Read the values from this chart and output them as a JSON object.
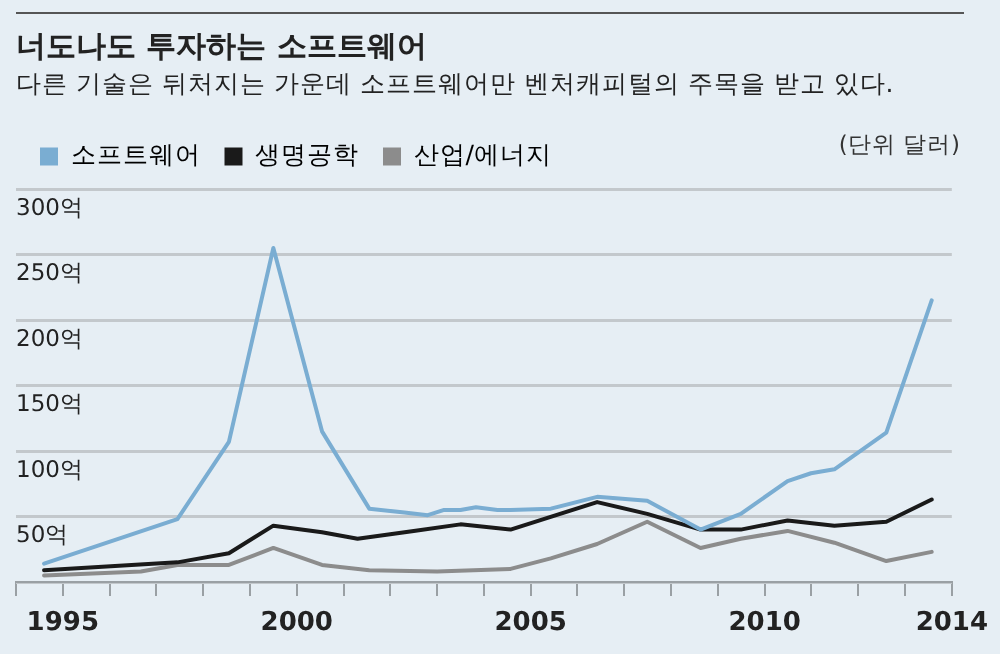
{
  "chart_data": {
    "type": "line",
    "title": "너도나도 투자하는 소프트웨어",
    "subtitle": "다른 기술은 뒤처지는 가운데 소프트웨어만 벤처캐피털의 주목을 받고 있다.",
    "annotations": [
      "(단위 달러)"
    ],
    "series": [
      {
        "name": "소프트웨어",
        "color": "#7aadd2",
        "x": [
          1994.6,
          1997.45,
          1998.55,
          1999.5,
          2000.54,
          2001.55,
          2002.3,
          2002.8,
          2003.15,
          2003.5,
          2003.83,
          2004.29,
          2004.57,
          2005.43,
          2006.42,
          2007.49,
          2008.63,
          2009.49,
          2010.49,
          2010.99,
          2011.49,
          2012.6,
          2013.57
        ],
        "values": [
          14,
          48,
          107,
          255,
          115,
          56,
          53,
          51,
          55,
          55,
          57,
          55,
          55,
          56,
          65,
          62,
          40,
          52,
          77,
          83,
          86,
          114,
          215
        ]
      },
      {
        "name": "생명공학",
        "color": "#1a1a1a",
        "x": [
          1994.6,
          1997.45,
          1998.55,
          1999.5,
          2000.54,
          2001.3,
          2002.5,
          2003.5,
          2004.57,
          2006.42,
          2007.49,
          2008.63,
          2009.49,
          2010.49,
          2011.49,
          2012.6,
          2013.57
        ],
        "values": [
          9,
          15,
          22,
          43,
          38,
          33,
          39,
          44,
          40,
          61,
          52,
          40,
          40,
          47,
          43,
          46,
          63
        ]
      },
      {
        "name": "산업/에너지",
        "color": "#8c8c8c",
        "x": [
          1994.6,
          1996.67,
          1997.45,
          1998.55,
          1999.5,
          2000.54,
          2001.55,
          2003.0,
          2004.57,
          2005.43,
          2006.42,
          2007.49,
          2008.63,
          2009.49,
          2010.49,
          2011.49,
          2012.6,
          2013.57
        ],
        "values": [
          5,
          8,
          13,
          13,
          26,
          13,
          9,
          8,
          10,
          18,
          29,
          46,
          26,
          33,
          39,
          30,
          16,
          23
        ]
      }
    ],
    "xlim": [
      1994,
      2014
    ],
    "xticks": [
      {
        "value": 1994,
        "label": null
      },
      1995,
      {
        "value": 1996,
        "label": null
      },
      {
        "value": 1997,
        "label": null
      },
      {
        "value": 1998,
        "label": null
      },
      {
        "value": 1999,
        "label": null
      },
      2000,
      {
        "value": 2001,
        "label": null
      },
      {
        "value": 2002,
        "label": null
      },
      {
        "value": 2003,
        "label": null
      },
      {
        "value": 2004,
        "label": null
      },
      2005,
      {
        "value": 2006,
        "label": null
      },
      {
        "value": 2007,
        "label": null
      },
      {
        "value": 2008,
        "label": null
      },
      {
        "value": 2009,
        "label": null
      },
      2010,
      {
        "value": 2011,
        "label": null
      },
      {
        "value": 2012,
        "label": null
      },
      {
        "value": 2013,
        "label": null
      },
      2014
    ],
    "ylim": [
      0,
      300
    ],
    "yticks": [
      {
        "value": 0,
        "label": null
      },
      {
        "value": 50,
        "label": "50억"
      },
      {
        "value": 100,
        "label": "100억"
      },
      {
        "value": 150,
        "label": "150억"
      },
      {
        "value": 200,
        "label": "200억"
      },
      {
        "value": 250,
        "label": "250억"
      },
      {
        "value": 300,
        "label": "300억"
      }
    ],
    "grid": "y",
    "legend": "top left",
    "marker": "none",
    "line_style": "solid"
  }
}
